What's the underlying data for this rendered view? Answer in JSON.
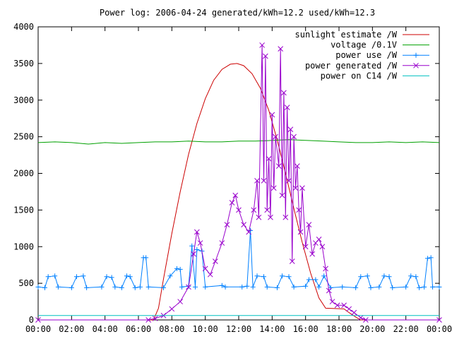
{
  "chart_data": {
    "type": "line",
    "title": "Power log: 2006-04-24 generated/kWh=12.2 used/kWh=12.3",
    "xlabel": "",
    "ylabel": "",
    "xlim": [
      0,
      24
    ],
    "ylim": [
      0,
      4000
    ],
    "x_ticks": [
      "00:00",
      "02:00",
      "04:00",
      "06:00",
      "08:00",
      "10:00",
      "12:00",
      "14:00",
      "16:00",
      "18:00",
      "20:00",
      "22:00",
      "00:00"
    ],
    "y_ticks": [
      0,
      500,
      1000,
      1500,
      2000,
      2500,
      3000,
      3500,
      4000
    ],
    "grid": false,
    "legend_position": "top-right",
    "series": [
      {
        "name": "sunlight estimate /W",
        "color": "#cc0000",
        "marker": "none",
        "points": [
          [
            0,
            0
          ],
          [
            6.9,
            0
          ],
          [
            7.2,
            160
          ],
          [
            7.5,
            560
          ],
          [
            8,
            1180
          ],
          [
            8.5,
            1750
          ],
          [
            9,
            2260
          ],
          [
            9.5,
            2680
          ],
          [
            10,
            3020
          ],
          [
            10.5,
            3270
          ],
          [
            11,
            3420
          ],
          [
            11.5,
            3490
          ],
          [
            11.9,
            3500
          ],
          [
            12.3,
            3470
          ],
          [
            12.8,
            3360
          ],
          [
            13.3,
            3160
          ],
          [
            13.8,
            2860
          ],
          [
            14.3,
            2460
          ],
          [
            14.8,
            2000
          ],
          [
            15.3,
            1520
          ],
          [
            15.8,
            1060
          ],
          [
            16.3,
            640
          ],
          [
            16.8,
            300
          ],
          [
            17.2,
            160
          ],
          [
            18.3,
            150
          ],
          [
            18.6,
            100
          ],
          [
            19,
            40
          ],
          [
            19.3,
            0
          ],
          [
            24,
            0
          ]
        ]
      },
      {
        "name": "voltage /0.1V",
        "color": "#00a000",
        "marker": "none",
        "points": [
          [
            0,
            2420
          ],
          [
            1,
            2430
          ],
          [
            2,
            2420
          ],
          [
            3,
            2400
          ],
          [
            4,
            2420
          ],
          [
            5,
            2410
          ],
          [
            6,
            2420
          ],
          [
            7,
            2430
          ],
          [
            8,
            2430
          ],
          [
            9,
            2440
          ],
          [
            10,
            2430
          ],
          [
            11,
            2430
          ],
          [
            12,
            2440
          ],
          [
            13,
            2440
          ],
          [
            14,
            2450
          ],
          [
            15,
            2460
          ],
          [
            16,
            2450
          ],
          [
            17,
            2440
          ],
          [
            18,
            2430
          ],
          [
            19,
            2420
          ],
          [
            20,
            2420
          ],
          [
            21,
            2430
          ],
          [
            22,
            2420
          ],
          [
            23,
            2430
          ],
          [
            24,
            2420
          ]
        ]
      },
      {
        "name": "power use /W",
        "color": "#0080ff",
        "marker": "plus",
        "points": [
          [
            0,
            450
          ],
          [
            0.4,
            440
          ],
          [
            0.6,
            590
          ],
          [
            1.0,
            600
          ],
          [
            1.2,
            450
          ],
          [
            2.0,
            440
          ],
          [
            2.3,
            590
          ],
          [
            2.7,
            600
          ],
          [
            2.9,
            440
          ],
          [
            3.8,
            450
          ],
          [
            4.1,
            590
          ],
          [
            4.4,
            580
          ],
          [
            4.6,
            450
          ],
          [
            5.0,
            440
          ],
          [
            5.3,
            600
          ],
          [
            5.5,
            590
          ],
          [
            5.8,
            440
          ],
          [
            6.1,
            450
          ],
          [
            6.3,
            850
          ],
          [
            6.45,
            850
          ],
          [
            6.6,
            450
          ],
          [
            7.5,
            440
          ],
          [
            7.9,
            600
          ],
          [
            8.3,
            700
          ],
          [
            8.5,
            690
          ],
          [
            8.6,
            450
          ],
          [
            9.0,
            460
          ],
          [
            9.2,
            1010
          ],
          [
            9.4,
            450
          ],
          [
            9.5,
            960
          ],
          [
            9.8,
            940
          ],
          [
            10.0,
            450
          ],
          [
            11.0,
            470
          ],
          [
            11.2,
            450
          ],
          [
            12.2,
            450
          ],
          [
            12.5,
            460
          ],
          [
            12.7,
            1220
          ],
          [
            12.85,
            450
          ],
          [
            13.1,
            600
          ],
          [
            13.5,
            590
          ],
          [
            13.7,
            450
          ],
          [
            14.3,
            440
          ],
          [
            14.6,
            600
          ],
          [
            15.0,
            590
          ],
          [
            15.3,
            450
          ],
          [
            16.0,
            460
          ],
          [
            16.2,
            550
          ],
          [
            16.6,
            550
          ],
          [
            16.8,
            450
          ],
          [
            17.1,
            600
          ],
          [
            17.5,
            440
          ],
          [
            18.2,
            450
          ],
          [
            19.0,
            440
          ],
          [
            19.3,
            590
          ],
          [
            19.7,
            600
          ],
          [
            19.9,
            440
          ],
          [
            20.4,
            450
          ],
          [
            20.7,
            600
          ],
          [
            21.0,
            590
          ],
          [
            21.2,
            440
          ],
          [
            22.0,
            450
          ],
          [
            22.3,
            600
          ],
          [
            22.6,
            590
          ],
          [
            22.8,
            440
          ],
          [
            23.1,
            450
          ],
          [
            23.3,
            840
          ],
          [
            23.5,
            850
          ],
          [
            23.6,
            450
          ],
          [
            24,
            450
          ]
        ]
      },
      {
        "name": "power generated /W",
        "color": "#9900cc",
        "marker": "cross",
        "points": [
          [
            0,
            0
          ],
          [
            6.6,
            0
          ],
          [
            7.0,
            20
          ],
          [
            7.5,
            60
          ],
          [
            8.0,
            150
          ],
          [
            8.5,
            250
          ],
          [
            9.0,
            450
          ],
          [
            9.3,
            900
          ],
          [
            9.5,
            1200
          ],
          [
            9.7,
            1050
          ],
          [
            10.0,
            700
          ],
          [
            10.3,
            620
          ],
          [
            10.6,
            800
          ],
          [
            11.0,
            1050
          ],
          [
            11.3,
            1300
          ],
          [
            11.6,
            1600
          ],
          [
            11.8,
            1700
          ],
          [
            12.0,
            1500
          ],
          [
            12.3,
            1300
          ],
          [
            12.6,
            1200
          ],
          [
            12.9,
            1500
          ],
          [
            13.1,
            1900
          ],
          [
            13.2,
            1400
          ],
          [
            13.4,
            3750
          ],
          [
            13.5,
            1900
          ],
          [
            13.6,
            3600
          ],
          [
            13.7,
            1500
          ],
          [
            13.8,
            2200
          ],
          [
            13.9,
            1400
          ],
          [
            14.0,
            2800
          ],
          [
            14.1,
            1800
          ],
          [
            14.2,
            2500
          ],
          [
            14.4,
            2100
          ],
          [
            14.5,
            3700
          ],
          [
            14.6,
            1700
          ],
          [
            14.7,
            3100
          ],
          [
            14.8,
            1400
          ],
          [
            14.9,
            2900
          ],
          [
            15.0,
            1900
          ],
          [
            15.1,
            2600
          ],
          [
            15.2,
            800
          ],
          [
            15.3,
            2500
          ],
          [
            15.4,
            1800
          ],
          [
            15.5,
            2100
          ],
          [
            15.6,
            1500
          ],
          [
            15.7,
            1200
          ],
          [
            15.8,
            1800
          ],
          [
            16.0,
            1000
          ],
          [
            16.2,
            1300
          ],
          [
            16.4,
            900
          ],
          [
            16.6,
            1050
          ],
          [
            16.8,
            1100
          ],
          [
            17.0,
            1000
          ],
          [
            17.2,
            700
          ],
          [
            17.4,
            400
          ],
          [
            17.6,
            250
          ],
          [
            17.9,
            200
          ],
          [
            18.3,
            200
          ],
          [
            18.6,
            150
          ],
          [
            18.9,
            100
          ],
          [
            19.3,
            30
          ],
          [
            19.6,
            0
          ],
          [
            24,
            0
          ]
        ]
      },
      {
        "name": "power on C14 /W",
        "color": "#00c0c0",
        "marker": "none",
        "points": [
          [
            0,
            60
          ],
          [
            24,
            60
          ]
        ]
      }
    ]
  }
}
